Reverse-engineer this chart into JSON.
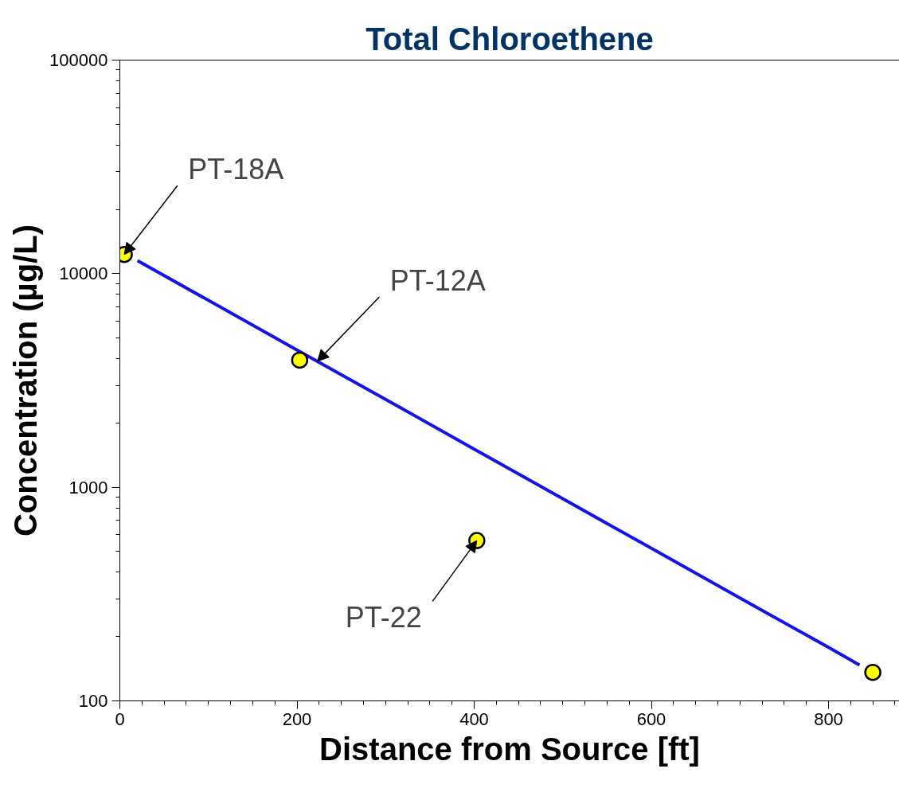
{
  "chart_data": {
    "type": "line",
    "title": "Total Chloroethene",
    "xlabel": "Distance from Source [ft]",
    "ylabel": "Concentration (µg/L)",
    "log": "y",
    "grid": false,
    "xlim": [
      0,
      880
    ],
    "xticks": [
      0,
      200,
      400,
      600,
      800
    ],
    "ylim": [
      100,
      100000
    ],
    "yticks": [
      100,
      1000,
      10000,
      100000
    ],
    "series": [
      {
        "color": "#1414e6",
        "line_style": "solid",
        "marker": "none",
        "x": [
          20,
          100,
          200,
          300,
          400,
          500,
          600,
          700,
          800,
          835
        ],
        "values": [
          11500,
          7500,
          4390,
          2580,
          1510,
          884,
          518,
          303,
          178,
          147
        ]
      },
      {
        "type": "scatter",
        "color": "#ffff00",
        "marker": "circle",
        "x": [
          5,
          203,
          403,
          850
        ],
        "values": [
          12300,
          3940,
          563,
          136
        ]
      }
    ],
    "annotations": [
      {
        "text": "PT-18A",
        "x": 5,
        "y": 12300
      },
      {
        "text": "PT-12A",
        "x": 223,
        "y": 3890
      },
      {
        "text": "PT-22",
        "x": 403,
        "y": 563
      }
    ]
  }
}
